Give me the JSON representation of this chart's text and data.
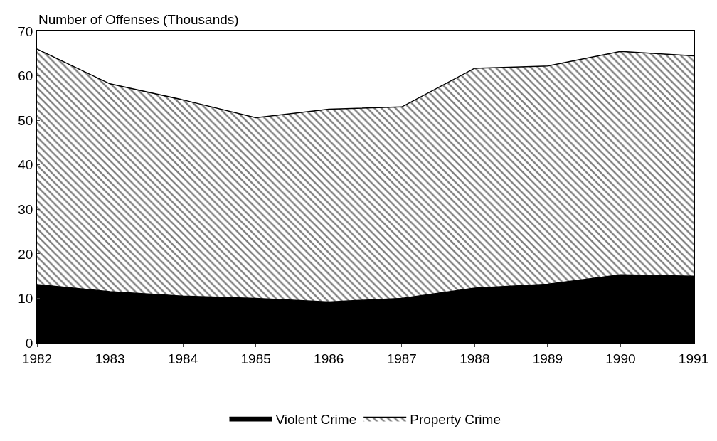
{
  "chart_data": {
    "type": "area",
    "stacked": true,
    "ylabel": "Number of Offenses (Thousands)",
    "x": [
      1982,
      1983,
      1984,
      1985,
      1986,
      1987,
      1988,
      1989,
      1990,
      1991
    ],
    "series": [
      {
        "name": "Violent Crime",
        "color": "#000000",
        "values": [
          13.1,
          11.5,
          10.5,
          10.0,
          9.2,
          10.0,
          12.3,
          13.2,
          15.3,
          15.0
        ]
      },
      {
        "name": "Property Crime",
        "color": "#000000",
        "values": [
          52.9,
          46.7,
          44.1,
          40.6,
          43.3,
          43.0,
          49.4,
          49.0,
          50.2,
          49.5
        ]
      }
    ],
    "xlim": [
      1982,
      1991
    ],
    "xticks": [
      1982,
      1983,
      1984,
      1985,
      1986,
      1987,
      1988,
      1989,
      1990,
      1991
    ],
    "ylim": [
      0,
      70
    ],
    "yticks": [
      0,
      10,
      20,
      30,
      40,
      50,
      60,
      70
    ],
    "legend": "bottom"
  }
}
